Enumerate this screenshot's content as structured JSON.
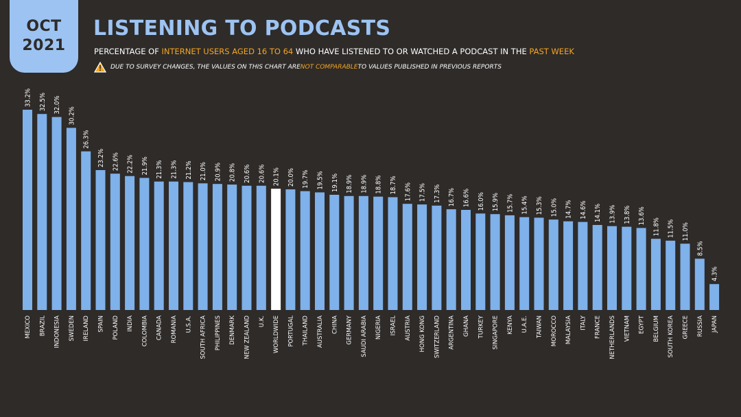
{
  "badge": {
    "line1": "OCT",
    "line2": "2021"
  },
  "header": {
    "title": "LISTENING TO PODCASTS",
    "subtitle_parts": [
      "PERCENTAGE OF ",
      "INTERNET USERS AGED 16 TO 64",
      " WHO HAVE LISTENED TO OR WATCHED A PODCAST IN THE ",
      "PAST WEEK"
    ],
    "note_parts": [
      "DUE TO SURVEY CHANGES, THE VALUES ON THIS CHART ARE ",
      "NOT COMPARABLE",
      " TO VALUES PUBLISHED IN PREVIOUS REPORTS"
    ],
    "icon": "warning-triangle-icon"
  },
  "colors": {
    "bar": "#7fb1ea",
    "highlight": "#ffffff",
    "accent": "#f5a623",
    "background": "#2e2b29"
  },
  "chart_data": {
    "type": "bar",
    "highlight_category": "WORLDWIDE",
    "ylim": [
      0,
      35
    ],
    "categories": [
      "MEXICO",
      "BRAZIL",
      "INDONESIA",
      "SWEDEN",
      "IRELAND",
      "SPAIN",
      "POLAND",
      "INDIA",
      "COLOMBIA",
      "CANADA",
      "ROMANIA",
      "U.S.A.",
      "SOUTH AFRICA",
      "PHILIPPINES",
      "DENMARK",
      "NEW ZEALAND",
      "U.K.",
      "WORLDWIDE",
      "PORTUGAL",
      "THAILAND",
      "AUSTRALIA",
      "CHINA",
      "GERMANY",
      "SAUDI ARABIA",
      "NIGERIA",
      "ISRAEL",
      "AUSTRIA",
      "HONG KONG",
      "SWITZERLAND",
      "ARGENTINA",
      "GHANA",
      "TURKEY",
      "SINGAPORE",
      "KENYA",
      "U.A.E.",
      "TAIWAN",
      "MOROCCO",
      "MALAYSIA",
      "ITALY",
      "FRANCE",
      "NETHERLANDS",
      "VIETNAM",
      "EGYPT",
      "BELGIUM",
      "SOUTH KOREA",
      "GREECE",
      "RUSSIA",
      "JAPAN"
    ],
    "values": [
      33.2,
      32.5,
      32.0,
      30.2,
      26.3,
      23.2,
      22.6,
      22.2,
      21.9,
      21.3,
      21.3,
      21.2,
      21.0,
      20.9,
      20.8,
      20.6,
      20.6,
      20.1,
      20.0,
      19.7,
      19.5,
      19.1,
      18.9,
      18.9,
      18.8,
      18.7,
      17.6,
      17.5,
      17.3,
      16.7,
      16.6,
      16.0,
      15.9,
      15.7,
      15.4,
      15.3,
      15.0,
      14.7,
      14.6,
      14.1,
      13.9,
      13.8,
      13.6,
      11.8,
      11.5,
      11.0,
      8.5,
      4.3
    ],
    "labels": [
      "33.2%",
      "32.5%",
      "32.0%",
      "30.2%",
      "26.3%",
      "23.2%",
      "22.6%",
      "22.2%",
      "21.9%",
      "21.3%",
      "21.3%",
      "21.2%",
      "21.0%",
      "20.9%",
      "20.8%",
      "20.6%",
      "20.6%",
      "20.1%",
      "20.0%",
      "19.7%",
      "19.5%",
      "19.1%",
      "18.9%",
      "18.9%",
      "18.8%",
      "18.7%",
      "17.6%",
      "17.5%",
      "17.3%",
      "16.7%",
      "16.6%",
      "16.0%",
      "15.9%",
      "15.7%",
      "15.4%",
      "15.3%",
      "15.0%",
      "14.7%",
      "14.6%",
      "14.1%",
      "13.9%",
      "13.8%",
      "13.6%",
      "11.8%",
      "11.5%",
      "11.0%",
      "8.5%",
      "4.3%"
    ]
  }
}
